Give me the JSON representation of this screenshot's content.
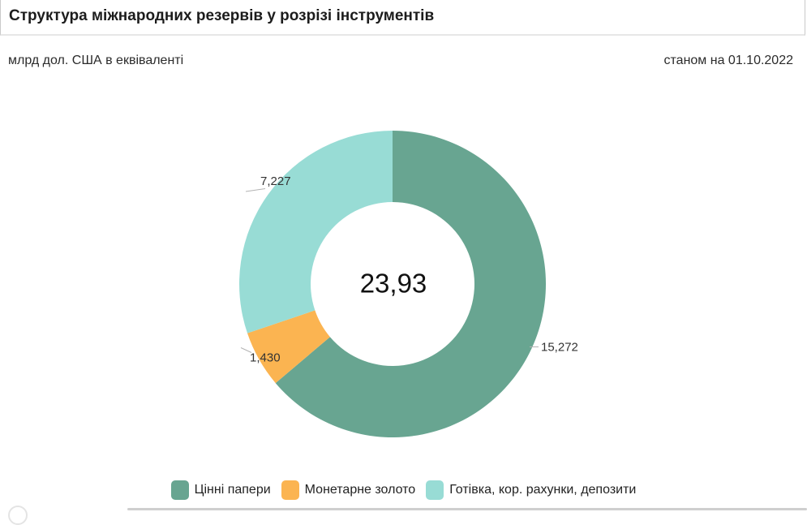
{
  "header": {
    "title": "Структура міжнародних резервів у розрізі інструментів",
    "units": "млрд дол. США в еквіваленті",
    "as_of": "станом на 01.10.2022"
  },
  "chart_data": {
    "type": "pie",
    "variant": "donut",
    "title": "Структура міжнародних резервів у розрізі інструментів",
    "units": "млрд дол. США в еквіваленті",
    "as_of_date": "01.10.2022",
    "center_label": "23,93",
    "total": 23.93,
    "legend_position": "bottom",
    "start_angle_deg": 0,
    "direction": "clockwise",
    "slices": [
      {
        "name": "Цінні папери",
        "value": 15.272,
        "display": "15,272",
        "color": "#68a591"
      },
      {
        "name": "Монетарне золото",
        "value": 1.43,
        "display": "1,430",
        "color": "#fbb451"
      },
      {
        "name": "Готівка, кор. рахунки, депозити",
        "value": 7.227,
        "display": "7,227",
        "color": "#98dcd5"
      }
    ]
  }
}
